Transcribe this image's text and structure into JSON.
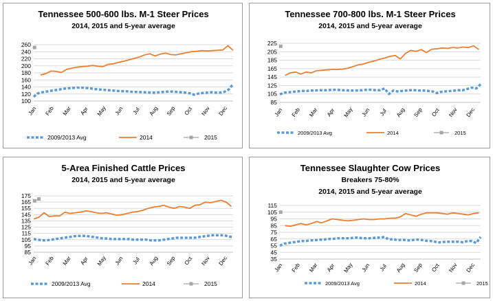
{
  "colors": {
    "avg": "#5b9bd5",
    "y2014": "#ed7d31",
    "y2015": "#a5a5a5",
    "grid": "#d9d9d9"
  },
  "chart_data": [
    {
      "type": "line",
      "title": "Tennessee 500-600 lbs. M-1 Steer Prices",
      "subtitle": "2014, 2015 and 5-year average",
      "categories": [
        "Jan",
        "Feb",
        "Mar",
        "Apr",
        "May",
        "Jun",
        "Jul",
        "Aug",
        "Sep",
        "Oct",
        "Nov",
        "Dec"
      ],
      "yticks": [
        100,
        120,
        140,
        160,
        180,
        200,
        220,
        240,
        260
      ],
      "ylim": [
        100,
        260
      ],
      "grid": true,
      "legend_position": "bottom",
      "series": [
        {
          "name": "2009/2013 Avg",
          "style": "avg",
          "x": [
            0,
            0.25,
            0.5,
            0.75,
            1,
            1.25,
            1.5,
            1.75,
            2,
            2.25,
            2.5,
            2.75,
            3,
            3.25,
            3.5,
            3.75,
            4,
            4.25,
            4.5,
            4.75,
            5,
            5.25,
            5.5,
            5.75,
            6,
            6.25,
            6.5,
            6.75,
            7,
            7.25,
            7.5,
            7.75,
            8,
            8.25,
            8.5,
            8.75,
            9,
            9.25,
            9.5,
            9.75,
            10,
            10.25,
            10.5,
            10.75,
            11,
            11.25,
            11.5
          ],
          "values": [
            112,
            122,
            125,
            127,
            129,
            131,
            133,
            135,
            136,
            137,
            138,
            138,
            137,
            136,
            134,
            133,
            132,
            131,
            130,
            129,
            128,
            128,
            127,
            126,
            126,
            125,
            125,
            124,
            124,
            125,
            126,
            127,
            127,
            126,
            125,
            124,
            122,
            118,
            121,
            123,
            124,
            125,
            124,
            124,
            126,
            133,
            148
          ]
        },
        {
          "name": "2014",
          "style": "y2014",
          "x": [
            0.4,
            0.7,
            1,
            1.3,
            1.6,
            1.9,
            2.2,
            2.5,
            2.8,
            3.1,
            3.4,
            3.7,
            4,
            4.3,
            4.6,
            4.9,
            5.2,
            5.5,
            5.8,
            6.1,
            6.4,
            6.7,
            7,
            7.3,
            7.6,
            7.9,
            8.2,
            8.5,
            8.8,
            9.1,
            9.4,
            9.7,
            10,
            10.3,
            10.6,
            10.9,
            11.2,
            11.5
          ],
          "values": [
            174,
            178,
            185,
            184,
            181,
            190,
            193,
            196,
            198,
            199,
            201,
            199,
            198,
            204,
            206,
            210,
            213,
            217,
            221,
            225,
            231,
            234,
            228,
            233,
            236,
            232,
            231,
            234,
            237,
            240,
            241,
            243,
            242,
            243,
            244,
            245,
            257,
            244
          ]
        },
        {
          "name": "2015",
          "style": "y2015",
          "x": [
            0.05
          ],
          "values": [
            252
          ]
        }
      ]
    },
    {
      "type": "line",
      "title": "Tennessee 700-800 lbs. M-1 Steer Prices",
      "subtitle": "2014, 2015 and 5-year average",
      "categories": [
        "Jan",
        "Feb",
        "Mar",
        "Apr",
        "May",
        "Jun",
        "Jul",
        "Aug",
        "Sep",
        "Oct",
        "Nov",
        "Dec"
      ],
      "yticks": [
        85,
        105,
        125,
        145,
        165,
        185,
        205,
        225
      ],
      "ylim": [
        85,
        225
      ],
      "grid": true,
      "legend_position": "bottom",
      "series": [
        {
          "name": "2009/2013 Avg",
          "style": "avg",
          "x": [
            0,
            0.25,
            0.5,
            0.75,
            1,
            1.25,
            1.5,
            1.75,
            2,
            2.25,
            2.5,
            2.75,
            3,
            3.25,
            3.5,
            3.75,
            4,
            4.25,
            4.5,
            4.75,
            5,
            5.25,
            5.5,
            5.75,
            6,
            6.25,
            6.5,
            6.75,
            7,
            7.25,
            7.5,
            7.75,
            8,
            8.25,
            8.5,
            8.75,
            9,
            9.25,
            9.5,
            9.75,
            10,
            10.25,
            10.5,
            10.75,
            11,
            11.25,
            11.5
          ],
          "values": [
            104,
            108,
            109,
            110,
            111,
            112,
            112,
            113,
            113,
            114,
            114,
            114,
            115,
            115,
            114,
            114,
            113,
            113,
            113,
            114,
            115,
            115,
            114,
            114,
            118,
            105,
            113,
            111,
            112,
            113,
            114,
            114,
            113,
            113,
            112,
            111,
            107,
            110,
            111,
            112,
            113,
            114,
            114,
            117,
            120,
            118,
            128
          ]
        },
        {
          "name": "2014",
          "style": "y2014",
          "x": [
            0.3,
            0.6,
            0.9,
            1.2,
            1.5,
            1.8,
            2.1,
            2.4,
            2.7,
            3,
            3.3,
            3.6,
            3.9,
            4.2,
            4.5,
            4.8,
            5.1,
            5.4,
            5.7,
            6,
            6.3,
            6.6,
            6.9,
            7.2,
            7.5,
            7.8,
            8.1,
            8.4,
            8.7,
            9,
            9.3,
            9.6,
            9.9,
            10.2,
            10.5,
            10.8,
            11.1,
            11.4
          ],
          "values": [
            149,
            155,
            157,
            152,
            157,
            155,
            160,
            161,
            162,
            163,
            163,
            164,
            166,
            170,
            174,
            176,
            180,
            183,
            187,
            190,
            194,
            196,
            188,
            201,
            208,
            206,
            210,
            203,
            211,
            212,
            214,
            213,
            215,
            214,
            216,
            215,
            219,
            210
          ]
        },
        {
          "name": "2015",
          "style": "y2015",
          "x": [
            0.05
          ],
          "values": [
            218
          ]
        }
      ]
    },
    {
      "type": "line",
      "title": "5-Area Finished Cattle Prices",
      "subtitle": "2014, 2015 and 5-year average",
      "categories": [
        "Jan",
        "Feb",
        "Mar",
        "Apr",
        "May",
        "Jun",
        "Jul",
        "Aug",
        "Sep",
        "Oct",
        "Nov",
        "Dec"
      ],
      "yticks": [
        85,
        95,
        105,
        115,
        125,
        135,
        145,
        155,
        165,
        175
      ],
      "ylim": [
        85,
        175
      ],
      "grid": true,
      "legend_position": "bottom",
      "series": [
        {
          "name": "2009/2013 Avg",
          "style": "avg",
          "x": [
            0,
            0.25,
            0.5,
            0.75,
            1,
            1.25,
            1.5,
            1.75,
            2,
            2.25,
            2.5,
            2.75,
            3,
            3.25,
            3.5,
            3.75,
            4,
            4.25,
            4.5,
            4.75,
            5,
            5.25,
            5.5,
            5.75,
            6,
            6.25,
            6.5,
            6.75,
            7,
            7.25,
            7.5,
            7.75,
            8,
            8.25,
            8.5,
            8.75,
            9,
            9.25,
            9.5,
            9.75,
            10,
            10.25,
            10.5,
            10.75,
            11,
            11.25,
            11.5
          ],
          "values": [
            106,
            105,
            104,
            104,
            105,
            106,
            107,
            108,
            109,
            110,
            111,
            111,
            111,
            110,
            109,
            108,
            107,
            107,
            106,
            106,
            106,
            106,
            106,
            105,
            105,
            105,
            105,
            104,
            104,
            104,
            105,
            106,
            107,
            108,
            108,
            108,
            108,
            108,
            109,
            110,
            111,
            112,
            112,
            112,
            112,
            110,
            109
          ]
        },
        {
          "name": "2014",
          "style": "y2014",
          "x": [
            0,
            0.3,
            0.6,
            0.9,
            1.2,
            1.5,
            1.8,
            2.1,
            2.4,
            2.7,
            3,
            3.3,
            3.6,
            3.9,
            4.2,
            4.5,
            4.8,
            5.1,
            5.4,
            5.7,
            6,
            6.3,
            6.6,
            6.9,
            7.2,
            7.5,
            7.8,
            8.1,
            8.4,
            8.7,
            9,
            9.3,
            9.6,
            9.9,
            10.2,
            10.5,
            10.8,
            11.1,
            11.4
          ],
          "values": [
            138,
            141,
            148,
            142,
            143,
            143,
            149,
            147,
            148,
            149,
            151,
            150,
            148,
            147,
            148,
            146,
            144,
            145,
            147,
            149,
            150,
            152,
            155,
            157,
            158,
            160,
            157,
            155,
            158,
            157,
            155,
            160,
            161,
            165,
            164,
            166,
            168,
            165,
            158
          ]
        },
        {
          "name": "2015",
          "style": "y2015",
          "x": [
            0.05,
            0.3
          ],
          "values": [
            167,
            170
          ]
        }
      ]
    },
    {
      "type": "line",
      "title": "Tennessee Slaughter Cow Prices",
      "subtitle": "Breakers 75-80%",
      "subtitle2": "2014, 2015 and 5-year average",
      "categories": [
        "Jan",
        "Feb",
        "Mar",
        "Apr",
        "May",
        "Jun",
        "Jul",
        "Aug",
        "Sep",
        "Oct",
        "Nov",
        "Dec"
      ],
      "yticks": [
        35,
        45,
        55,
        65,
        75,
        85,
        95,
        105,
        115
      ],
      "ylim": [
        35,
        115
      ],
      "grid": true,
      "legend_position": "bottom",
      "series": [
        {
          "name": "2009/2013 Avg",
          "style": "avg",
          "x": [
            0,
            0.25,
            0.5,
            0.75,
            1,
            1.25,
            1.5,
            1.75,
            2,
            2.25,
            2.5,
            2.75,
            3,
            3.25,
            3.5,
            3.75,
            4,
            4.25,
            4.5,
            4.75,
            5,
            5.25,
            5.5,
            5.75,
            6,
            6.25,
            6.5,
            6.75,
            7,
            7.25,
            7.5,
            7.75,
            8,
            8.25,
            8.5,
            8.75,
            9,
            9.25,
            9.5,
            9.75,
            10,
            10.25,
            10.5,
            10.75,
            11,
            11.25,
            11.5
          ],
          "values": [
            55,
            58,
            59,
            60,
            61,
            62,
            62,
            63,
            63,
            64,
            64,
            65,
            65,
            66,
            66,
            66,
            66,
            67,
            67,
            66,
            66,
            66,
            67,
            67,
            68,
            64,
            65,
            63,
            64,
            63,
            63,
            64,
            64,
            63,
            62,
            62,
            60,
            60,
            61,
            61,
            61,
            61,
            60,
            62,
            62,
            59,
            68
          ]
        },
        {
          "name": "2014",
          "style": "y2014",
          "x": [
            0.3,
            0.6,
            0.9,
            1.2,
            1.5,
            1.8,
            2.1,
            2.4,
            2.7,
            3,
            3.3,
            3.6,
            3.9,
            4.2,
            4.5,
            4.8,
            5.1,
            5.4,
            5.7,
            6,
            6.3,
            6.6,
            6.9,
            7.2,
            7.5,
            7.8,
            8.1,
            8.4,
            8.7,
            9,
            9.3,
            9.6,
            9.9,
            10.2,
            10.5,
            10.8,
            11.1,
            11.4
          ],
          "values": [
            85,
            84,
            86,
            88,
            86,
            88,
            91,
            89,
            92,
            95,
            94,
            93,
            92,
            93,
            94,
            95,
            94,
            94,
            95,
            95,
            96,
            96,
            98,
            103,
            101,
            99,
            102,
            104,
            104,
            104,
            103,
            102,
            104,
            103,
            102,
            101,
            103,
            104
          ]
        },
        {
          "name": "2015",
          "style": "y2015",
          "x": [
            0.05
          ],
          "values": [
            105
          ]
        }
      ]
    }
  ]
}
